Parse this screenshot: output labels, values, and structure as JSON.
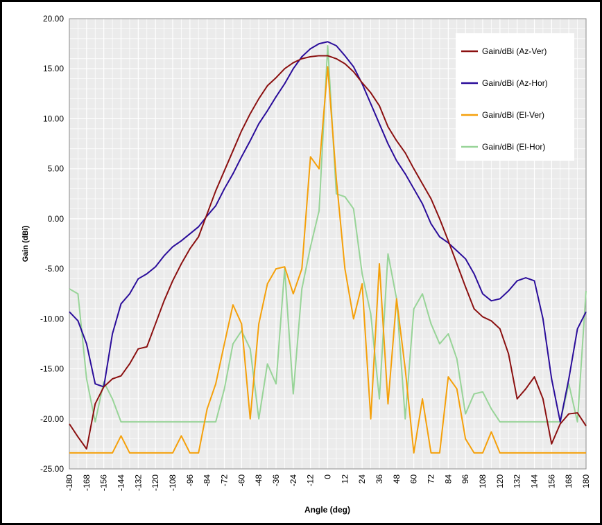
{
  "chart_data": {
    "type": "line",
    "xlabel": "Angle (deg)",
    "ylabel": "Gain (dBi)",
    "x": [
      -180,
      -174,
      -168,
      -162,
      -156,
      -150,
      -144,
      -138,
      -132,
      -126,
      -120,
      -114,
      -108,
      -102,
      -96,
      -90,
      -84,
      -78,
      -72,
      -66,
      -60,
      -54,
      -48,
      -42,
      -36,
      -30,
      -24,
      -18,
      -12,
      -6,
      0,
      6,
      12,
      18,
      24,
      30,
      36,
      42,
      48,
      54,
      60,
      66,
      72,
      78,
      84,
      90,
      96,
      102,
      108,
      114,
      120,
      126,
      132,
      138,
      144,
      150,
      156,
      162,
      168,
      174,
      180
    ],
    "xlim": [
      -180,
      180
    ],
    "xticks": [
      -180,
      -168,
      -156,
      -144,
      -132,
      -120,
      -108,
      -96,
      -84,
      -72,
      -60,
      -48,
      -36,
      -24,
      -12,
      0,
      12,
      24,
      36,
      48,
      60,
      72,
      84,
      96,
      108,
      120,
      132,
      144,
      156,
      168,
      180
    ],
    "ylim": [
      -25,
      20
    ],
    "yticks": [
      {
        "value": -25,
        "label": "-25.00"
      },
      {
        "value": -20,
        "label": "-20.00"
      },
      {
        "value": -15,
        "label": "-15.00"
      },
      {
        "value": -10,
        "label": "-10.00"
      },
      {
        "value": -5,
        "label": "-5.00"
      },
      {
        "value": 0,
        "label": "0.00"
      },
      {
        "value": 5,
        "label": "5.00"
      },
      {
        "value": 10,
        "label": "10.00"
      },
      {
        "value": 15,
        "label": "15.00"
      },
      {
        "value": 20,
        "label": "20.00"
      }
    ],
    "grid": true,
    "legend": "top-right",
    "series": [
      {
        "name": "Gain/dBi (Az-Ver)",
        "color": "#8b1010",
        "values": [
          -20.5,
          -21.8,
          -23,
          -18.5,
          -16.8,
          -16,
          -15.7,
          -14.5,
          -13,
          -12.8,
          -10.5,
          -8.2,
          -6.2,
          -4.5,
          -3,
          -1.8,
          0.5,
          2.8,
          4.8,
          6.8,
          8.8,
          10.5,
          12,
          13.3,
          14.1,
          15,
          15.6,
          16,
          16.2,
          16.3,
          16.3,
          16,
          15.5,
          14.7,
          13.6,
          12.6,
          11.3,
          9.2,
          7.8,
          6.6,
          5,
          3.5,
          2,
          0,
          -2.2,
          -4.5,
          -6.8,
          -9,
          -9.8,
          -10.2,
          -11,
          -13.5,
          -18,
          -17,
          -15.8,
          -18,
          -22.5,
          -20.5,
          -19.5,
          -19.4,
          -20.7
        ]
      },
      {
        "name": "Gain/dBi (Az-Hor)",
        "color": "#2a0c9a",
        "values": [
          -9.3,
          -10.2,
          -12.5,
          -16.5,
          -16.8,
          -11.5,
          -8.5,
          -7.5,
          -6,
          -5.5,
          -4.8,
          -3.7,
          -2.8,
          -2.2,
          -1.5,
          -0.8,
          0.3,
          1.3,
          3,
          4.5,
          6.2,
          7.8,
          9.5,
          10.8,
          12.2,
          13.5,
          15,
          16.2,
          17,
          17.5,
          17.7,
          17.3,
          16.3,
          15.2,
          13.5,
          11.5,
          9.5,
          7.5,
          5.8,
          4.5,
          3,
          1.5,
          -0.5,
          -1.8,
          -2.4,
          -3.2,
          -4,
          -5.5,
          -7.5,
          -8.2,
          -8,
          -7.2,
          -6.2,
          -5.9,
          -6.2,
          -10,
          -16,
          -20.3,
          -16,
          -11,
          -9.3
        ]
      },
      {
        "name": "Gain/dBi (El-Ver)",
        "color": "#f5a00a",
        "values": [
          -23.4,
          -23.4,
          -23.4,
          -23.4,
          -23.4,
          -23.4,
          -21.7,
          -23.4,
          -23.4,
          -23.4,
          -23.4,
          -23.4,
          -23.4,
          -21.7,
          -23.4,
          -23.4,
          -19,
          -16.5,
          -12.5,
          -8.6,
          -10.5,
          -20,
          -10.5,
          -6.5,
          -5,
          -4.8,
          -7.5,
          -5,
          6.2,
          5,
          15.2,
          4,
          -5,
          -10,
          -6.5,
          -20,
          -4.5,
          -18.5,
          -8,
          -15,
          -23.4,
          -18,
          -23.4,
          -23.4,
          -15.8,
          -17,
          -22,
          -23.4,
          -23.4,
          -21.3,
          -23.4,
          -23.4,
          -23.4,
          -23.4,
          -23.4,
          -23.4,
          -23.4,
          -23.4,
          -23.4,
          -23.4,
          -23.4
        ]
      },
      {
        "name": "Gain/dBi (El-Hor)",
        "color": "#98d498",
        "values": [
          -7,
          -7.5,
          -16,
          -20.3,
          -16.3,
          -18,
          -20.3,
          -20.3,
          -20.3,
          -20.3,
          -20.3,
          -20.3,
          -20.3,
          -20.3,
          -20.3,
          -20.3,
          -20.3,
          -20.3,
          -17,
          -12.5,
          -11.2,
          -13,
          -20,
          -14.5,
          -16.5,
          -5,
          -17.5,
          -7,
          -2.8,
          0.8,
          17.3,
          2.5,
          2.2,
          1,
          -5.5,
          -9.5,
          -18,
          -3.5,
          -8,
          -20,
          -9,
          -7.5,
          -10.5,
          -12.5,
          -11.5,
          -14,
          -19.5,
          -17.5,
          -17.3,
          -19,
          -20.3,
          -20.3,
          -20.3,
          -20.3,
          -20.3,
          -20.3,
          -20.3,
          -20.3,
          -16.5,
          -20.3,
          -7.2
        ]
      }
    ]
  }
}
